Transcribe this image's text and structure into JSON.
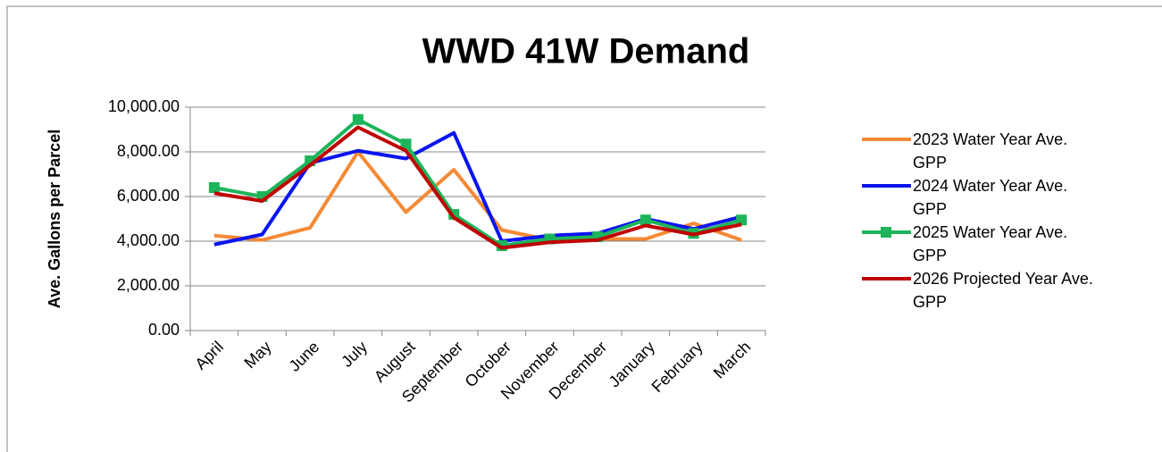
{
  "chart_data": {
    "type": "line",
    "title": "WWD 41W Demand",
    "y_label": "Ave. Gallons per Parcel",
    "categories": [
      "April",
      "May",
      "June",
      "July",
      "August",
      "September",
      "October",
      "November",
      "December",
      "January",
      "February",
      "March"
    ],
    "series": [
      {
        "name": "2023 Water Year Ave. GPP",
        "color": "#f58a35",
        "marker": false,
        "values": [
          4250,
          4050,
          4600,
          8000,
          5300,
          7200,
          4500,
          4050,
          4100,
          4100,
          4800,
          4050
        ]
      },
      {
        "name": "2024 Water Year Ave. GPP",
        "color": "#0a14f0",
        "marker": false,
        "values": [
          3850,
          4300,
          7500,
          8050,
          7700,
          8850,
          4000,
          4250,
          4350,
          5000,
          4550,
          5100
        ]
      },
      {
        "name": "2025 Water Year Ave. GPP",
        "color": "#1db45a",
        "marker": true,
        "values": [
          6400,
          6000,
          7600,
          9450,
          8350,
          5200,
          3800,
          4100,
          4200,
          4950,
          4350,
          4950
        ]
      },
      {
        "name": "2026 Projected Year Ave. GPP",
        "color": "#c00000",
        "marker": false,
        "values": [
          6150,
          5800,
          7400,
          9100,
          8050,
          5050,
          3700,
          3950,
          4050,
          4700,
          4300,
          4750
        ]
      }
    ],
    "ylim": [
      0,
      10000
    ],
    "yticks": [
      {
        "value": 0,
        "label": "0.00"
      },
      {
        "value": 2000,
        "label": "2,000.00"
      },
      {
        "value": 4000,
        "label": "4,000.00"
      },
      {
        "value": 6000,
        "label": "6,000.00"
      },
      {
        "value": 8000,
        "label": "8,000.00"
      },
      {
        "value": 10000,
        "label": "10,000.00"
      }
    ],
    "grid": true,
    "legend": "right"
  }
}
